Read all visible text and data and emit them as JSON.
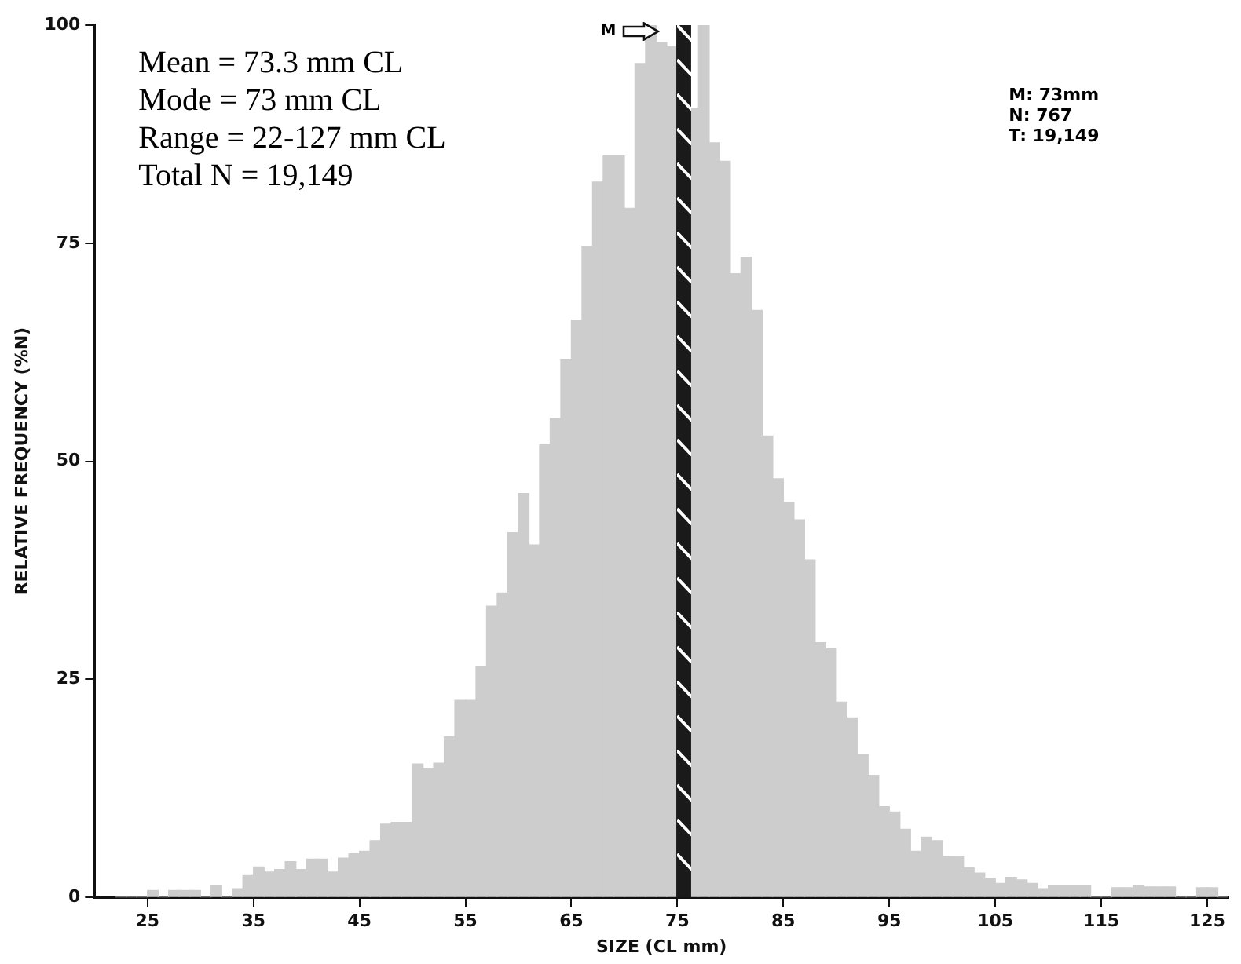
{
  "chart_data": {
    "type": "histogram",
    "xlabel": "SIZE (CL mm)",
    "ylabel": "RELATIVE FREQUENCY (%N)",
    "bins": [
      22,
      23,
      24,
      25,
      26,
      27,
      28,
      29,
      30,
      31,
      32,
      33,
      34,
      35,
      36,
      37,
      38,
      39,
      40,
      41,
      42,
      43,
      44,
      45,
      46,
      47,
      48,
      49,
      50,
      51,
      52,
      53,
      54,
      55,
      56,
      57,
      58,
      59,
      60,
      61,
      62,
      63,
      64,
      65,
      66,
      67,
      68,
      69,
      70,
      71,
      72,
      73,
      74,
      75,
      76,
      77,
      78,
      79,
      80,
      81,
      82,
      83,
      84,
      85,
      86,
      87,
      88,
      89,
      90,
      91,
      92,
      93,
      94,
      95,
      96,
      97,
      98,
      99,
      100,
      101,
      102,
      103,
      104,
      105,
      106,
      107,
      108,
      109,
      110,
      111,
      112,
      113,
      114,
      115,
      116,
      117,
      118,
      119,
      120,
      121,
      122,
      123,
      124,
      125,
      126,
      127
    ],
    "values": [
      0,
      0,
      0,
      0.8,
      0,
      0.8,
      0.8,
      0.8,
      0,
      1.3,
      0,
      1.0,
      2.6,
      3.5,
      2.9,
      3.2,
      4.1,
      3.2,
      4.4,
      4.4,
      2.9,
      4.5,
      5.0,
      5.3,
      6.5,
      8.4,
      8.6,
      8.6,
      15.3,
      14.8,
      15.4,
      18.4,
      22.6,
      22.6,
      26.5,
      33.4,
      34.9,
      41.8,
      46.3,
      40.4,
      51.9,
      54.9,
      61.7,
      66.2,
      74.6,
      82,
      85,
      85,
      79,
      95.6,
      100,
      98,
      97.5,
      null,
      90.5,
      100,
      86.5,
      84.4,
      71.5,
      73.4,
      67.3,
      52.9,
      48.0,
      45.3,
      43.3,
      38.7,
      29.2,
      28.5,
      22.4,
      20.6,
      16.4,
      14.0,
      10.4,
      9.8,
      7.8,
      5.3,
      6.9,
      6.5,
      4.7,
      4.7,
      3.4,
      2.8,
      2.2,
      1.6,
      2.3,
      2.0,
      1.6,
      1.0,
      1.3,
      1.3,
      1.3,
      1.3,
      0,
      0,
      1.1,
      1.1,
      1.3,
      1.2,
      1.2,
      1.2,
      0,
      0,
      1.1,
      1.1,
      0
    ],
    "color": "#cdcdcd",
    "xlim": [
      20,
      127
    ],
    "xticks": [
      25,
      35,
      45,
      55,
      65,
      75,
      85,
      95,
      105,
      115,
      125
    ],
    "ylim": [
      0,
      100
    ],
    "yticks": [
      0,
      25,
      50,
      75,
      100
    ],
    "grid": false,
    "legend": false,
    "bands": [
      {
        "axis": "x",
        "from": 74.9,
        "to": 76.3,
        "color": "#1a1a1a"
      }
    ],
    "annotations": [
      "Mean = 73.3 mm CL",
      "Mode = 73 mm CL",
      "Range = 22-127 mm CL",
      "Total N = 19,149",
      "M: 73mm",
      "N: 767",
      "T: 19,149",
      "M"
    ]
  }
}
